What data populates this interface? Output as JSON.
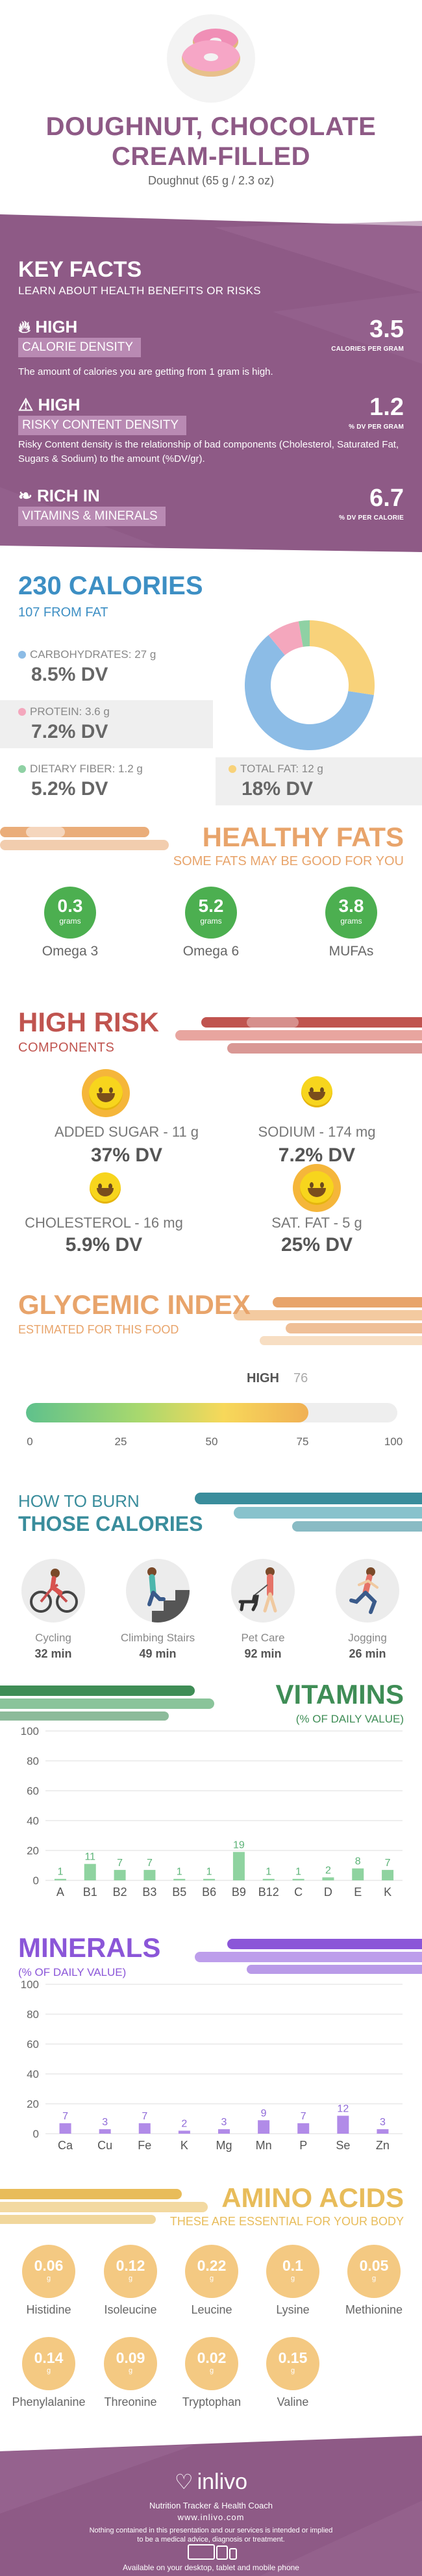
{
  "hero": {
    "title_line1": "DOUGHNUT, CHOCOLATE",
    "title_line2": "CREAM-FILLED",
    "subtitle": "Doughnut (65 g / 2.3 oz)"
  },
  "key_facts": {
    "title": "KEY FACTS",
    "subtitle": "LEARN ABOUT HEALTH BENEFITS OR RISKS",
    "items": [
      {
        "level": "HIGH",
        "label": "CALORIE DENSITY",
        "value": "3.5",
        "unit": "CALORIES PER GRAM",
        "desc": "The amount of calories you are getting from 1 gram is high.",
        "icon": "flame-icon"
      },
      {
        "level": "HIGH",
        "label": "RISKY CONTENT DENSITY",
        "value": "1.2",
        "unit": "% DV PER GRAM",
        "desc": "Risky Content density is the relationship of bad components (Cholesterol, Saturated Fat, Sugars & Sodium) to the amount (%DV/gr).",
        "icon": "warning-icon"
      },
      {
        "level": "RICH  IN",
        "label": "VITAMINS & MINERALS",
        "value": "6.7",
        "unit": "% DV PER CALORIE",
        "desc": "",
        "icon": "leaf-icon"
      }
    ]
  },
  "calories": {
    "title": "230 CALORIES",
    "from_fat": "107 FROM FAT",
    "carbs_label": "CARBOHYDRATES: 27 g",
    "carbs_dv": "8.5% DV",
    "protein_label": "PROTEIN: 3.6 g",
    "protein_dv": "7.2% DV",
    "fiber_label": "DIETARY FIBER: 1.2 g",
    "fiber_dv": "5.2% DV",
    "fat_label": "TOTAL FAT: 12 g",
    "fat_dv": "18% DV",
    "colors": {
      "carbs": "#8cbce6",
      "protein": "#f4a7bd",
      "fiber": "#8fd1a4",
      "fat": "#f8d27a"
    },
    "chart_data": {
      "type": "pie",
      "categories": [
        "Carbohydrates",
        "Protein",
        "Dietary Fiber",
        "Total Fat"
      ],
      "values": [
        27,
        3.6,
        1.2,
        12
      ]
    }
  },
  "healthy_fats": {
    "title": "HEALTHY FATS",
    "subtitle": "SOME FATS MAY BE GOOD FOR YOU",
    "unit": "grams",
    "items": [
      {
        "value": "0.3",
        "name": "Omega 3"
      },
      {
        "value": "5.2",
        "name": "Omega 6"
      },
      {
        "value": "3.8",
        "name": "MUFAs"
      }
    ]
  },
  "high_risk": {
    "title": "HIGH RISK",
    "subtitle": "COMPONENTS",
    "items": [
      {
        "label": "ADDED SUGAR - 11 g",
        "dv": "37% DV",
        "icon": "smiley-icon"
      },
      {
        "label": "SODIUM - 174 mg",
        "dv": "7.2% DV",
        "icon": "smiley-icon"
      },
      {
        "label": "CHOLESTEROL - 16 mg",
        "dv": "5.9% DV",
        "icon": "smiley-icon"
      },
      {
        "label": "SAT. FAT - 5 g",
        "dv": "25% DV",
        "icon": "smiley-icon"
      }
    ]
  },
  "glycemic": {
    "title": "GLYCEMIC INDEX",
    "subtitle": "ESTIMATED FOR THIS FOOD",
    "level": "HIGH",
    "value": "76",
    "value_num": 76,
    "ticks": [
      "0",
      "25",
      "50",
      "75",
      "100"
    ]
  },
  "burn": {
    "title_line1": "HOW TO BURN",
    "title_line2": "THOSE CALORIES",
    "items": [
      {
        "name": "Cycling",
        "minutes": "32 min",
        "icon": "cycling-icon"
      },
      {
        "name": "Climbing Stairs",
        "minutes": "49 min",
        "icon": "climbing-stairs-icon"
      },
      {
        "name": "Pet Care",
        "minutes": "92 min",
        "icon": "pet-care-icon"
      },
      {
        "name": "Jogging",
        "minutes": "26 min",
        "icon": "jogging-icon"
      }
    ]
  },
  "vitamins": {
    "title": "VITAMINS",
    "subtitle": "(% OF DAILY VALUE)",
    "chart_data": {
      "type": "bar",
      "categories": [
        "A",
        "B1",
        "B2",
        "B3",
        "B5",
        "B6",
        "B9",
        "B12",
        "C",
        "D",
        "E",
        "K"
      ],
      "values": [
        1,
        11,
        7,
        7,
        1,
        1,
        19,
        1,
        1,
        2,
        8,
        7
      ],
      "labels": [
        "1",
        "11",
        "7",
        "7",
        "1",
        "1",
        "19",
        "1",
        "1",
        "2",
        "8",
        "7"
      ],
      "yticks": [
        "100",
        "80",
        "60",
        "40",
        "20",
        "0"
      ],
      "ylim": [
        0,
        100
      ],
      "color": "#8fd3a0",
      "label_color": "#5cb377"
    }
  },
  "minerals": {
    "title": "MINERALS",
    "subtitle": "(% OF DAILY VALUE)",
    "chart_data": {
      "type": "bar",
      "categories": [
        "Ca",
        "Cu",
        "Fe",
        "K",
        "Mg",
        "Mn",
        "P",
        "Se",
        "Zn"
      ],
      "values": [
        7,
        3,
        7,
        2,
        3,
        9,
        7,
        12,
        3
      ],
      "labels": [
        "7",
        "3",
        "7",
        "2",
        "3",
        "9",
        "7",
        "12",
        "3"
      ],
      "yticks": [
        "100",
        "80",
        "60",
        "40",
        "20",
        "0"
      ],
      "ylim": [
        0,
        100
      ],
      "color": "#b18be8",
      "label_color": "#8f6ad8"
    }
  },
  "amino": {
    "title": "AMINO ACIDS",
    "subtitle": "THESE ARE ESSENTIAL FOR YOUR BODY",
    "unit": "g",
    "items": [
      {
        "value": "0.06",
        "name": "Histidine"
      },
      {
        "value": "0.12",
        "name": "Isoleucine"
      },
      {
        "value": "0.22",
        "name": "Leucine"
      },
      {
        "value": "0.1",
        "name": "Lysine"
      },
      {
        "value": "0.05",
        "name": "Methionine"
      },
      {
        "value": "0.14",
        "name": "Phenylalanine"
      },
      {
        "value": "0.09",
        "name": "Threonine"
      },
      {
        "value": "0.02",
        "name": "Tryptophan"
      },
      {
        "value": "0.15",
        "name": "Valine"
      }
    ]
  },
  "footer": {
    "brand": "inlivo",
    "tagline": "Nutrition Tracker & Health Coach",
    "url": "www.inlivo.com",
    "disclaimer_1": "Nothing contained in this presentation and our services is intended or implied",
    "disclaimer_2": "to be a medical advice, diagnosis or treatment.",
    "available": "Available on your desktop, tablet and mobile phone"
  }
}
